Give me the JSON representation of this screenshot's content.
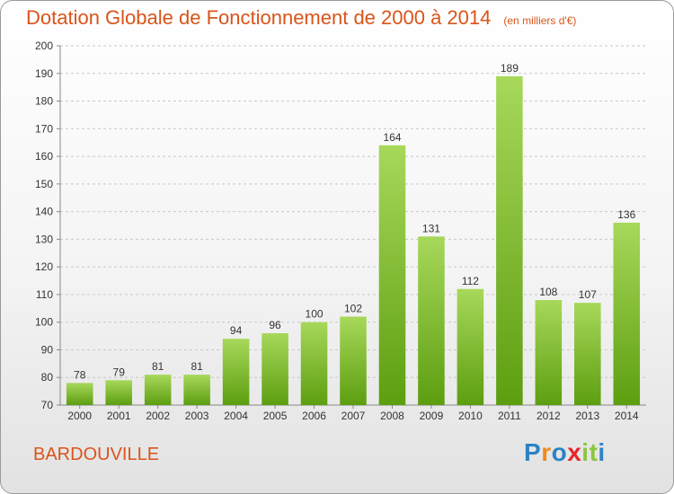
{
  "title": "Dotation Globale de Fonctionnement de 2000 à 2014",
  "subtitle": "(en milliers d'€)",
  "place": "BARDOUVILLE",
  "logo": {
    "text": "Proxiti",
    "letter_colors": [
      "#2b83c6",
      "#f08a1c",
      "#2b83c6",
      "#e8232a",
      "#8cc63e",
      "#8cc63e",
      "#2b83c6"
    ]
  },
  "colors": {
    "bar_top": "#a7d85a",
    "bar_bottom": "#5d9e10",
    "title": "#d9541a",
    "grid": "#c8c8c8"
  },
  "chart_data": {
    "type": "bar",
    "title": "Dotation Globale de Fonctionnement de 2000 à 2014",
    "subtitle": "(en milliers d'€)",
    "categories": [
      "2000",
      "2001",
      "2002",
      "2003",
      "2004",
      "2005",
      "2006",
      "2007",
      "2008",
      "2009",
      "2010",
      "2011",
      "2012",
      "2013",
      "2014"
    ],
    "values": [
      78,
      79,
      81,
      81,
      94,
      96,
      100,
      102,
      164,
      131,
      112,
      189,
      108,
      107,
      136
    ],
    "ylim": [
      70,
      200
    ],
    "yticks": [
      70,
      80,
      90,
      100,
      110,
      120,
      130,
      140,
      150,
      160,
      170,
      180,
      190,
      200
    ],
    "grid": true,
    "xlabel": "",
    "ylabel": ""
  }
}
